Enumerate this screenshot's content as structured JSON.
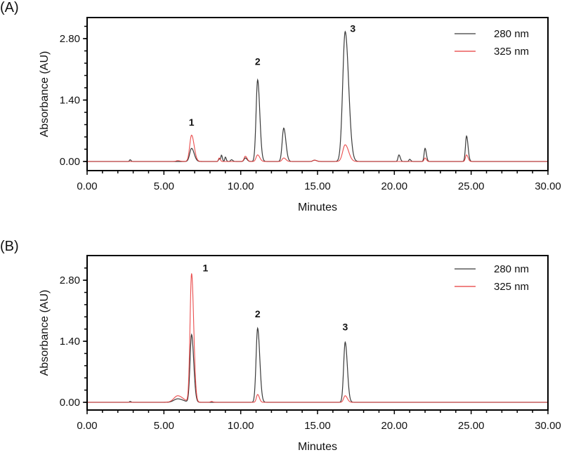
{
  "chart_data": [
    {
      "panel": "(A)",
      "type": "line",
      "title": "",
      "xlabel": "Minutes",
      "ylabel": "Absorbance (AU)",
      "xlim": [
        0,
        30
      ],
      "ylim": [
        -0.2,
        3.3
      ],
      "xticks": [
        "0.00",
        "5.00",
        "10.00",
        "15.00",
        "20.00",
        "25.00",
        "30.00"
      ],
      "yticks": [
        "0.00",
        "1.40",
        "2.80"
      ],
      "legend": [
        "280 nm",
        "325 nm"
      ],
      "legend_position": "upper right",
      "grid": false,
      "series": [
        {
          "name": "280 nm",
          "color": "#3a3a3a",
          "peaks": [
            {
              "x": 2.8,
              "y": 0.04,
              "w": 0.04
            },
            {
              "x": 6.8,
              "y": 0.3,
              "w": 0.12
            },
            {
              "x": 8.6,
              "y": 0.06,
              "w": 0.05
            },
            {
              "x": 8.75,
              "y": 0.14,
              "w": 0.04
            },
            {
              "x": 9.0,
              "y": 0.1,
              "w": 0.04
            },
            {
              "x": 9.4,
              "y": 0.04,
              "w": 0.06
            },
            {
              "x": 10.3,
              "y": 0.08,
              "w": 0.08
            },
            {
              "x": 11.1,
              "y": 1.86,
              "w": 0.1
            },
            {
              "x": 12.8,
              "y": 0.76,
              "w": 0.1
            },
            {
              "x": 14.8,
              "y": 0.03,
              "w": 0.1
            },
            {
              "x": 16.8,
              "y": 2.96,
              "w": 0.16
            },
            {
              "x": 20.3,
              "y": 0.15,
              "w": 0.06
            },
            {
              "x": 21.0,
              "y": 0.05,
              "w": 0.05
            },
            {
              "x": 22.0,
              "y": 0.3,
              "w": 0.06
            },
            {
              "x": 24.7,
              "y": 0.58,
              "w": 0.07
            }
          ]
        },
        {
          "name": "325 nm",
          "color": "#e83a3a",
          "peaks": [
            {
              "x": 5.9,
              "y": 0.02,
              "w": 0.1
            },
            {
              "x": 6.8,
              "y": 0.6,
              "w": 0.12
            },
            {
              "x": 8.6,
              "y": 0.08,
              "w": 0.05
            },
            {
              "x": 10.3,
              "y": 0.12,
              "w": 0.08
            },
            {
              "x": 11.1,
              "y": 0.15,
              "w": 0.1
            },
            {
              "x": 12.8,
              "y": 0.08,
              "w": 0.1
            },
            {
              "x": 14.8,
              "y": 0.03,
              "w": 0.1
            },
            {
              "x": 16.8,
              "y": 0.38,
              "w": 0.16
            },
            {
              "x": 22.0,
              "y": 0.08,
              "w": 0.06
            },
            {
              "x": 24.7,
              "y": 0.15,
              "w": 0.07
            }
          ]
        }
      ],
      "annotations": [
        {
          "text": "1",
          "x": 6.8,
          "y": 0.82
        },
        {
          "text": "2",
          "x": 11.1,
          "y": 2.2
        },
        {
          "text": "3",
          "x": 17.3,
          "y": 2.95
        }
      ]
    },
    {
      "panel": "(B)",
      "type": "line",
      "title": "",
      "xlabel": "Minutes",
      "ylabel": "Absorbance (AU)",
      "xlim": [
        0,
        30
      ],
      "ylim": [
        -0.18,
        3.3
      ],
      "xticks": [
        "0.00",
        "5.00",
        "10.00",
        "15.00",
        "20.00",
        "25.00",
        "30.00"
      ],
      "yticks": [
        "0.00",
        "1.40",
        "2.80"
      ],
      "legend": [
        "280 nm",
        "325 nm"
      ],
      "legend_position": "upper right",
      "grid": false,
      "series": [
        {
          "name": "280 nm",
          "color": "#3a3a3a",
          "peaks": [
            {
              "x": 2.8,
              "y": 0.02,
              "w": 0.04
            },
            {
              "x": 5.9,
              "y": 0.08,
              "w": 0.25
            },
            {
              "x": 6.8,
              "y": 1.55,
              "w": 0.1
            },
            {
              "x": 11.1,
              "y": 1.7,
              "w": 0.1
            },
            {
              "x": 16.8,
              "y": 1.38,
              "w": 0.1
            }
          ]
        },
        {
          "name": "325 nm",
          "color": "#e83a3a",
          "peaks": [
            {
              "x": 5.9,
              "y": 0.15,
              "w": 0.25
            },
            {
              "x": 6.8,
              "y": 2.95,
              "w": 0.1
            },
            {
              "x": 8.1,
              "y": 0.02,
              "w": 0.06
            },
            {
              "x": 11.1,
              "y": 0.18,
              "w": 0.08
            },
            {
              "x": 16.8,
              "y": 0.15,
              "w": 0.1
            }
          ]
        }
      ],
      "annotations": [
        {
          "text": "1",
          "x": 7.7,
          "y": 3.0
        },
        {
          "text": "2",
          "x": 11.1,
          "y": 1.95
        },
        {
          "text": "3",
          "x": 16.8,
          "y": 1.65
        }
      ]
    }
  ]
}
